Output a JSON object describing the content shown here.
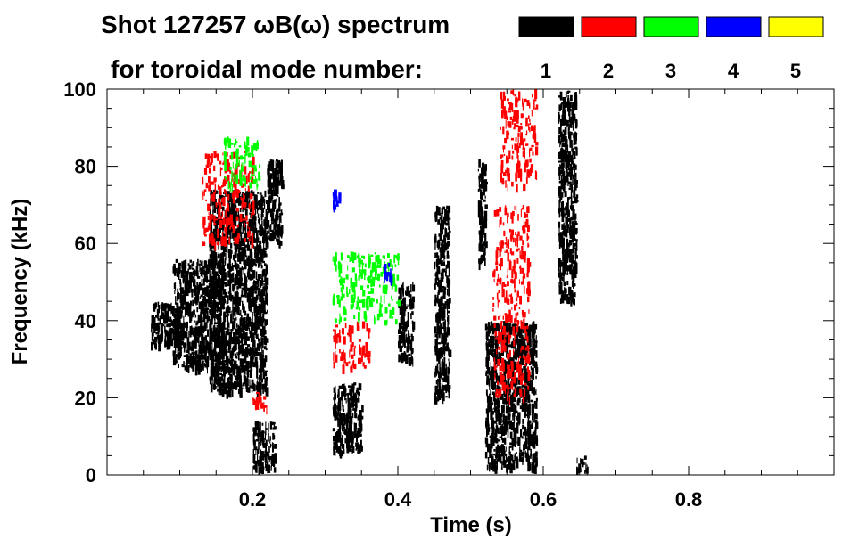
{
  "chart_data": {
    "type": "heatmap",
    "title": "Shot 127257 ωB(ω) spectrum",
    "subtitle": "for toroidal mode number:",
    "xlabel": "Time (s)",
    "ylabel": "Frequency (kHz)",
    "xlim": [
      0,
      1.0
    ],
    "ylim": [
      0,
      100
    ],
    "x_ticks": [
      0.2,
      0.4,
      0.6,
      0.8
    ],
    "x_tick_labels": [
      "0.2",
      "0.4",
      "0.6",
      "0.8"
    ],
    "y_ticks": [
      0,
      20,
      40,
      60,
      80,
      100
    ],
    "y_tick_labels": [
      "0",
      "20",
      "40",
      "60",
      "80",
      "100"
    ],
    "legend_position": "top-right",
    "legend": [
      {
        "label": "1",
        "color": "#000000"
      },
      {
        "label": "2",
        "color": "#ff0000"
      },
      {
        "label": "3",
        "color": "#00ff00"
      },
      {
        "label": "4",
        "color": "#0000ff"
      },
      {
        "label": "5",
        "color": "#ffff00"
      }
    ],
    "activity": [
      {
        "mode": "1",
        "t_start": 0.06,
        "t_end": 0.1,
        "f_low": 34,
        "f_high": 45
      },
      {
        "mode": "1",
        "t_start": 0.09,
        "t_end": 0.16,
        "f_low": 28,
        "f_high": 56
      },
      {
        "mode": "1",
        "t_start": 0.14,
        "t_end": 0.22,
        "f_low": 22,
        "f_high": 74
      },
      {
        "mode": "1",
        "t_start": 0.2,
        "t_end": 0.23,
        "f_low": 2,
        "f_high": 14
      },
      {
        "mode": "1",
        "t_start": 0.22,
        "t_end": 0.24,
        "f_low": 60,
        "f_high": 82
      },
      {
        "mode": "1",
        "t_start": 0.31,
        "t_end": 0.35,
        "f_low": 6,
        "f_high": 24
      },
      {
        "mode": "1",
        "t_start": 0.4,
        "t_end": 0.42,
        "f_low": 30,
        "f_high": 50
      },
      {
        "mode": "1",
        "t_start": 0.45,
        "t_end": 0.47,
        "f_low": 20,
        "f_high": 70
      },
      {
        "mode": "1",
        "t_start": 0.51,
        "t_end": 0.52,
        "f_low": 55,
        "f_high": 82
      },
      {
        "mode": "1",
        "t_start": 0.52,
        "t_end": 0.59,
        "f_low": 2,
        "f_high": 40
      },
      {
        "mode": "1",
        "t_start": 0.62,
        "t_end": 0.645,
        "f_low": 45,
        "f_high": 100
      },
      {
        "mode": "1",
        "t_start": 0.645,
        "t_end": 0.66,
        "f_low": 1,
        "f_high": 5
      },
      {
        "mode": "2",
        "t_start": 0.13,
        "t_end": 0.2,
        "f_low": 60,
        "f_high": 84
      },
      {
        "mode": "2",
        "t_start": 0.2,
        "t_end": 0.22,
        "f_low": 18,
        "f_high": 22
      },
      {
        "mode": "2",
        "t_start": 0.31,
        "t_end": 0.36,
        "f_low": 28,
        "f_high": 40
      },
      {
        "mode": "2",
        "t_start": 0.54,
        "t_end": 0.59,
        "f_low": 75,
        "f_high": 100
      },
      {
        "mode": "2",
        "t_start": 0.53,
        "t_end": 0.58,
        "f_low": 20,
        "f_high": 70
      },
      {
        "mode": "3",
        "t_start": 0.16,
        "t_end": 0.21,
        "f_low": 75,
        "f_high": 88
      },
      {
        "mode": "3",
        "t_start": 0.31,
        "t_end": 0.4,
        "f_low": 40,
        "f_high": 58
      },
      {
        "mode": "4",
        "t_start": 0.31,
        "t_end": 0.32,
        "f_low": 70,
        "f_high": 74
      },
      {
        "mode": "4",
        "t_start": 0.38,
        "t_end": 0.39,
        "f_low": 51,
        "f_high": 55
      }
    ]
  }
}
